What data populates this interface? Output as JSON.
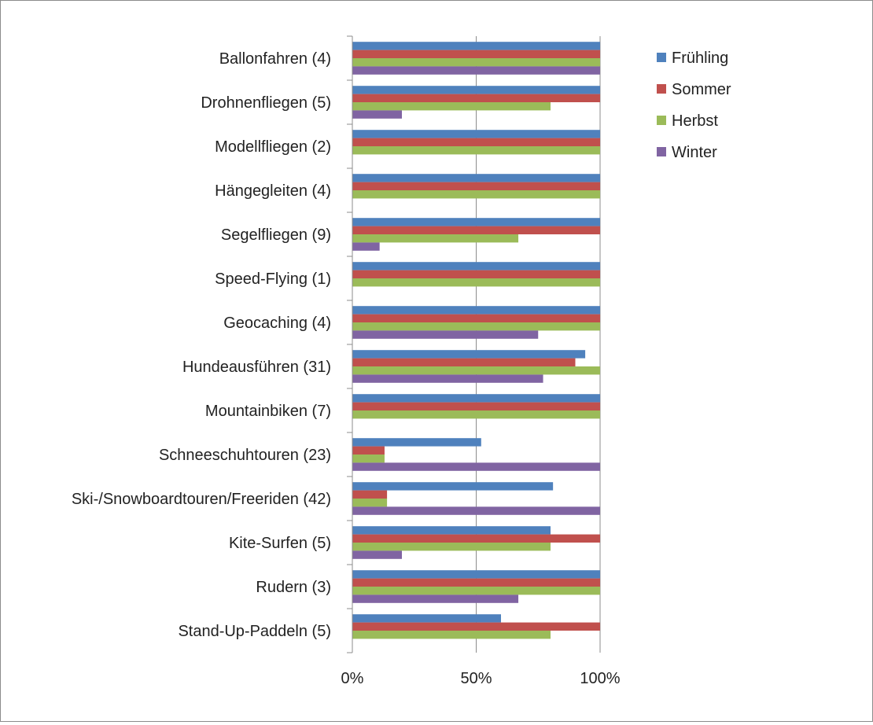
{
  "chart_data": {
    "type": "bar",
    "orientation": "horizontal",
    "categories": [
      "Ballonfahren (4)",
      "Drohnenfliegen (5)",
      "Modellfliegen (2)",
      "Hängegleiten (4)",
      "Segelfliegen (9)",
      "Speed-Flying (1)",
      "Geocaching (4)",
      "Hundeausführen (31)",
      "Mountainbiken (7)",
      "Schneeschuhtouren (23)",
      "Ski-/Snowboardtouren/Freeriden (42)",
      "Kite-Surfen (5)",
      "Rudern (3)",
      "Stand-Up-Paddeln (5)"
    ],
    "series": [
      {
        "name": "Frühling",
        "color": "#4f81bd",
        "values": [
          100,
          100,
          100,
          100,
          100,
          100,
          100,
          94,
          100,
          52,
          81,
          80,
          100,
          60
        ]
      },
      {
        "name": "Sommer",
        "color": "#c0504d",
        "values": [
          100,
          100,
          100,
          100,
          100,
          100,
          100,
          90,
          100,
          13,
          14,
          100,
          100,
          100
        ]
      },
      {
        "name": "Herbst",
        "color": "#9bbb59",
        "values": [
          100,
          80,
          100,
          100,
          67,
          100,
          100,
          100,
          100,
          13,
          14,
          80,
          100,
          80
        ]
      },
      {
        "name": "Winter",
        "color": "#8064a2",
        "values": [
          100,
          20,
          0,
          0,
          11,
          0,
          75,
          77,
          0,
          100,
          100,
          20,
          67,
          0
        ]
      }
    ],
    "xticks": [
      "0%",
      "50%",
      "100%"
    ],
    "xlim": [
      0,
      100
    ],
    "grid": true,
    "legend_position": "right"
  }
}
